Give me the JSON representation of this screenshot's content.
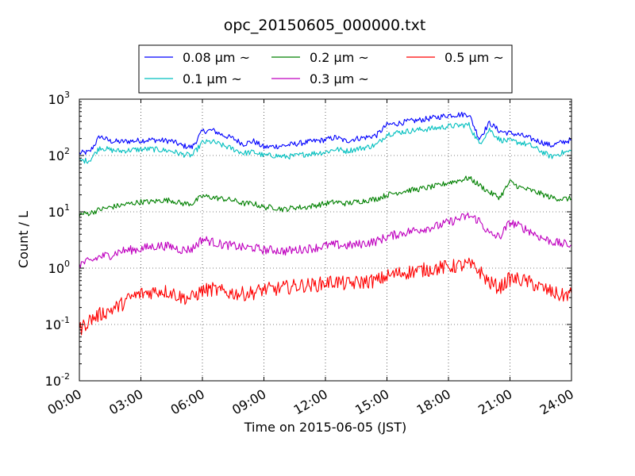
{
  "chart_data": {
    "type": "line",
    "title": "opc_20150605_000000.txt",
    "xlabel": "Time on 2015-06-05 (JST)",
    "ylabel": "Count / L",
    "yscale": "log",
    "ylim": [
      0.01,
      1000
    ],
    "xlim": [
      "00:00",
      "24:00"
    ],
    "grid": true,
    "legend_position": "top-center",
    "x_ticks": [
      "00:00",
      "03:00",
      "06:00",
      "09:00",
      "12:00",
      "15:00",
      "18:00",
      "21:00",
      "24:00"
    ],
    "y_ticks": [
      {
        "base": "10",
        "exp": "-2"
      },
      {
        "base": "10",
        "exp": "-1"
      },
      {
        "base": "10",
        "exp": "0"
      },
      {
        "base": "10",
        "exp": "1"
      },
      {
        "base": "10",
        "exp": "2"
      },
      {
        "base": "10",
        "exp": "3"
      }
    ],
    "x": [
      "00:00",
      "00:30",
      "01:00",
      "01:30",
      "02:00",
      "02:30",
      "03:00",
      "03:30",
      "04:00",
      "04:30",
      "05:00",
      "05:30",
      "06:00",
      "06:30",
      "07:00",
      "07:30",
      "08:00",
      "08:30",
      "09:00",
      "09:30",
      "10:00",
      "10:30",
      "11:00",
      "11:30",
      "12:00",
      "12:30",
      "13:00",
      "13:30",
      "14:00",
      "14:30",
      "15:00",
      "15:30",
      "16:00",
      "16:30",
      "17:00",
      "17:30",
      "18:00",
      "18:30",
      "19:00",
      "19:30",
      "20:00",
      "20:30",
      "21:00",
      "21:30",
      "22:00",
      "22:30",
      "23:00",
      "23:30",
      "24:00"
    ],
    "series": [
      {
        "name": "0.08 μm ~",
        "color": "#0000ff",
        "values": [
          110,
          115,
          220,
          180,
          175,
          180,
          185,
          190,
          185,
          180,
          150,
          140,
          270,
          280,
          230,
          200,
          160,
          180,
          140,
          145,
          150,
          160,
          170,
          180,
          190,
          210,
          180,
          200,
          210,
          230,
          350,
          370,
          400,
          420,
          450,
          480,
          520,
          530,
          540,
          200,
          380,
          270,
          250,
          230,
          200,
          175,
          150,
          170,
          190
        ]
      },
      {
        "name": "0.1 μm ~",
        "color": "#00bfbf",
        "values": [
          80,
          82,
          140,
          125,
          120,
          125,
          128,
          130,
          125,
          120,
          105,
          100,
          170,
          175,
          150,
          130,
          110,
          115,
          100,
          100,
          95,
          98,
          105,
          110,
          115,
          130,
          120,
          130,
          140,
          155,
          240,
          255,
          270,
          285,
          295,
          310,
          330,
          340,
          350,
          160,
          290,
          190,
          180,
          170,
          150,
          120,
          95,
          110,
          120
        ]
      },
      {
        "name": "0.2 μm ~",
        "color": "#008000",
        "values": [
          9,
          9.5,
          11,
          12,
          13,
          14,
          15,
          15,
          16,
          16,
          14,
          14,
          19,
          18,
          17,
          16,
          14,
          14,
          12,
          12,
          11,
          12,
          12,
          13,
          14,
          15,
          14,
          15,
          16,
          17,
          20,
          22,
          24,
          25,
          27,
          29,
          33,
          36,
          40,
          30,
          22,
          18,
          34,
          27,
          24,
          21,
          18,
          17,
          17
        ]
      },
      {
        "name": "0.3 μm ~",
        "color": "#bf00bf",
        "values": [
          1.2,
          1.3,
          1.6,
          1.7,
          2,
          2.1,
          2.2,
          2.4,
          2.5,
          2.4,
          2.1,
          2.2,
          3.3,
          2.9,
          2.6,
          2.5,
          2.3,
          2.3,
          2.1,
          2.1,
          2,
          2.1,
          2.2,
          2.3,
          2.5,
          2.6,
          2.5,
          2.6,
          2.8,
          3,
          3.6,
          4,
          4.4,
          4.8,
          5.2,
          5.6,
          6.5,
          7.5,
          8.5,
          7,
          4,
          3.6,
          6.5,
          5.5,
          4.5,
          3.5,
          3,
          2.7,
          2.6
        ]
      },
      {
        "name": "0.5 μm ~",
        "color": "#ff0000",
        "values": [
          0.08,
          0.12,
          0.15,
          0.18,
          0.22,
          0.3,
          0.35,
          0.38,
          0.4,
          0.37,
          0.3,
          0.3,
          0.4,
          0.42,
          0.38,
          0.36,
          0.35,
          0.37,
          0.42,
          0.42,
          0.45,
          0.48,
          0.5,
          0.5,
          0.55,
          0.58,
          0.52,
          0.55,
          0.58,
          0.6,
          0.72,
          0.8,
          0.85,
          0.9,
          0.95,
          1,
          1.05,
          1.1,
          1.15,
          0.9,
          0.55,
          0.45,
          0.65,
          0.62,
          0.55,
          0.45,
          0.38,
          0.32,
          0.36
        ]
      }
    ]
  }
}
